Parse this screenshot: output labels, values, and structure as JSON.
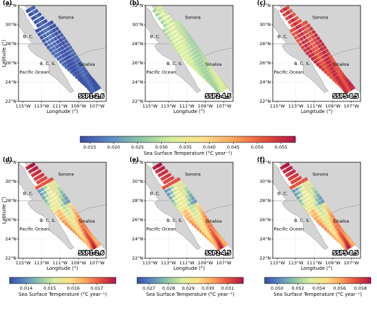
{
  "lat_ticks": [
    "22°N",
    "24°N",
    "26°N",
    "28°N",
    "30°N",
    "32°N"
  ],
  "lon_ticks": [
    "115°W",
    "113°W",
    "111°W",
    "109°W",
    "107°W"
  ],
  "ylabel": "Latitude (°)",
  "xlabel": "Longitude (°)",
  "places": {
    "sonora": "Sonora",
    "bc": "B. C.",
    "bcs": "B. C. S.",
    "sinaloa": "Sinaloa",
    "pacific": "Pacific Ocean"
  },
  "panels": [
    {
      "id": "a",
      "label": "(a)",
      "scenario": "SSP1-2.6",
      "pattern": "uniform_low"
    },
    {
      "id": "b",
      "label": "(b)",
      "scenario": "SSP2-4.5",
      "pattern": "uniform_mid"
    },
    {
      "id": "c",
      "label": "(c)",
      "scenario": "SSP5-8.5",
      "pattern": "uniform_high"
    },
    {
      "id": "d",
      "label": "(d)",
      "scenario": "SSP1-2.6",
      "pattern": "varied"
    },
    {
      "id": "e",
      "label": "(e)",
      "scenario": "SSP2-4.5",
      "pattern": "varied"
    },
    {
      "id": "f",
      "label": "(f)",
      "scenario": "SSP5-8.5",
      "pattern": "varied"
    }
  ],
  "colorbar_top": {
    "ticks": [
      "0.015",
      "0.020",
      "0.025",
      "0.030",
      "0.035",
      "0.040",
      "0.045",
      "0.050",
      "0.055"
    ],
    "range": [
      0.013,
      0.058
    ],
    "label": "Sea Surface Temperature (°C year⁻¹)"
  },
  "colorbars_bottom": [
    {
      "ticks": [
        "0.014",
        "0.015",
        "0.016",
        "0.017"
      ],
      "range": [
        0.0133,
        0.0178
      ],
      "label": "Sea Surface Temperature (°C year⁻¹)"
    },
    {
      "ticks": [
        "0.027",
        "0.028",
        "0.029",
        "0.030",
        "0.031"
      ],
      "range": [
        0.0264,
        0.0318
      ],
      "label": "Sea Surface Temperature (°C year⁻¹)"
    },
    {
      "ticks": [
        "0.050",
        "0.052",
        "0.054",
        "0.056",
        "0.058"
      ],
      "range": [
        0.0488,
        0.059
      ],
      "label": "Sea Surface Temperature (°C year⁻¹)"
    }
  ],
  "colormap": [
    "#3b4ea5",
    "#5e8bc4",
    "#8fc7a4",
    "#d9ef9b",
    "#fee08b",
    "#fca55d",
    "#e4513f",
    "#b01646"
  ]
}
